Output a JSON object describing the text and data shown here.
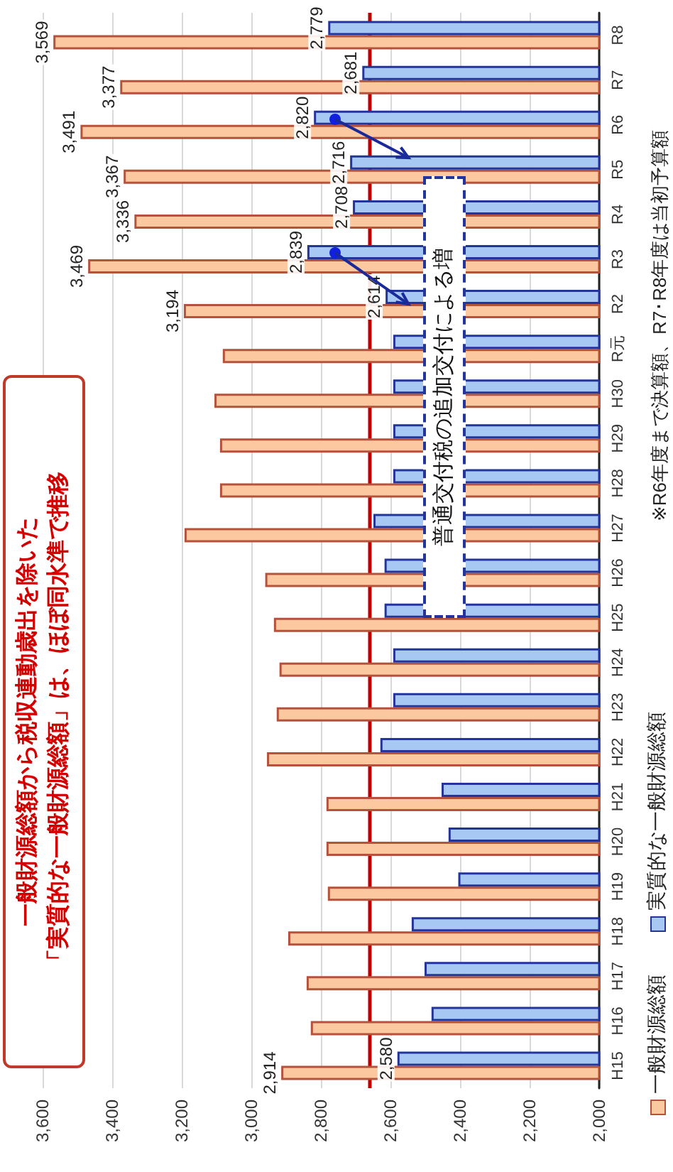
{
  "chart_data": {
    "type": "bar",
    "orientation": "horizontal",
    "categories": [
      "R8",
      "R7",
      "R6",
      "R5",
      "R4",
      "R3",
      "R2",
      "R元",
      "H30",
      "H29",
      "H28",
      "H27",
      "H26",
      "H25",
      "H24",
      "H23",
      "H22",
      "H21",
      "H20",
      "H19",
      "H18",
      "H17",
      "H16",
      "H15"
    ],
    "series": [
      {
        "name": "一般財源総額",
        "color": "#fcc8a0",
        "values": [
          3569,
          3377,
          3491,
          3367,
          3336,
          3469,
          3194,
          3082,
          3106,
          3090,
          3090,
          3192,
          2960,
          2935,
          2919,
          2927,
          2955,
          2784,
          2784,
          2780,
          2894,
          2841,
          2829,
          2914
        ],
        "value_labels": [
          "3,569",
          "3,377",
          "3,491",
          "3,367",
          "3,336",
          "3,469",
          "3,194",
          null,
          null,
          null,
          null,
          null,
          null,
          null,
          null,
          null,
          null,
          null,
          null,
          null,
          null,
          null,
          null,
          "2,914"
        ]
      },
      {
        "name": "実質的な一般財源総額",
        "color": "#a8c8f4",
        "values": [
          2779,
          2681,
          2820,
          2716,
          2708,
          2839,
          2614,
          2592,
          2592,
          2592,
          2592,
          2649,
          2617,
          2617,
          2592,
          2592,
          2629,
          2453,
          2433,
          2405,
          2539,
          2502,
          2482,
          2580
        ],
        "value_labels": [
          "2,779",
          "2,681",
          "2,820",
          "2,716",
          "2,708",
          "2,839",
          "2,614",
          null,
          null,
          null,
          null,
          null,
          null,
          null,
          null,
          null,
          null,
          null,
          null,
          null,
          null,
          null,
          null,
          "2,580"
        ]
      }
    ],
    "xlim": [
      3600,
      2000
    ],
    "xticks": [
      {
        "value": 3600,
        "label": "3,600"
      },
      {
        "value": 3400,
        "label": "3,400"
      },
      {
        "value": 3200,
        "label": "3,200"
      },
      {
        "value": 3000,
        "label": "3,000"
      },
      {
        "value": 2800,
        "label": "2,800"
      },
      {
        "value": 2600,
        "label": "2,600"
      },
      {
        "value": 2400,
        "label": "2,400"
      },
      {
        "value": 2200,
        "label": "2,200"
      },
      {
        "value": 2000,
        "label": "2,000"
      }
    ],
    "grid": "x",
    "legend": "right",
    "ref_lines": [
      {
        "axis": "x",
        "value": 2660,
        "color": "#c00000"
      }
    ],
    "annotations": [
      "一般財源総額から税収連動歳出を除いた",
      "「実質的な一般財源総額」は、ほぼ同水準で推移",
      {
        "text": "普通交付税の追加交付による増",
        "x": 2540,
        "y": "R2"
      },
      "※R6年度まで決算額、R7･R8年度は当初予算額"
    ]
  }
}
